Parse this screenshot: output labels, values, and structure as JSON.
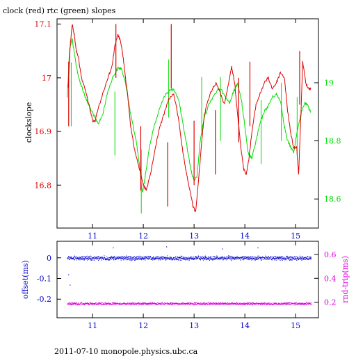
{
  "page": {
    "title": "clock (red) rtc (green) slopes",
    "footer": "2011-07-10  monopole.physics.ubc.ca"
  },
  "colors": {
    "clock": "#dd0000",
    "rtc": "#00dd00",
    "offset": "#0000cc",
    "rndtrip": "#dd00dd",
    "axis": "#000000"
  },
  "chart_data": [
    {
      "type": "line",
      "title": "clock (red) rtc (green) slopes",
      "ylabel": "clockslope",
      "xlim": [
        10.3,
        15.45
      ],
      "ylim": [
        16.72,
        17.11
      ],
      "y2lim": [
        18.5,
        19.22
      ],
      "x_ticks": [
        11,
        12,
        13,
        14,
        15
      ],
      "y_ticks": [
        16.8,
        16.9,
        17,
        17.1
      ],
      "y2_ticks": [
        18.6,
        18.8,
        19
      ],
      "y2_tick_labels": [
        "18.6",
        "18.8",
        "19"
      ],
      "series": [
        {
          "name": "clock",
          "axis": "left",
          "x": [
            10.52,
            10.56,
            10.6,
            10.64,
            10.68,
            10.72,
            10.78,
            10.85,
            10.93,
            11.0,
            11.05,
            11.1,
            11.2,
            11.3,
            11.38,
            11.44,
            11.5,
            11.55,
            11.6,
            11.65,
            11.7,
            11.75,
            11.82,
            11.9,
            12.0,
            12.06,
            12.14,
            12.22,
            12.3,
            12.4,
            12.5,
            12.6,
            12.7,
            12.78,
            12.85,
            12.92,
            12.98,
            13.03,
            13.08,
            13.14,
            13.2,
            13.28,
            13.36,
            13.44,
            13.52,
            13.6,
            13.68,
            13.74,
            13.8,
            13.86,
            13.92,
            13.98,
            14.03,
            14.08,
            14.14,
            14.22,
            14.3,
            14.38,
            14.46,
            14.54,
            14.62,
            14.7,
            14.78,
            14.84,
            14.9,
            14.96,
            15.02,
            15.06,
            15.1,
            15.14,
            15.2,
            15.26,
            15.3
          ],
          "values": [
            16.98,
            17.06,
            17.1,
            17.08,
            17.05,
            17.04,
            17.0,
            16.98,
            16.95,
            16.92,
            16.92,
            16.94,
            16.97,
            17.0,
            17.02,
            17.06,
            17.08,
            17.07,
            17.04,
            17.0,
            16.96,
            16.91,
            16.87,
            16.84,
            16.8,
            16.79,
            16.82,
            16.86,
            16.9,
            16.93,
            16.96,
            16.97,
            16.92,
            16.86,
            16.82,
            16.79,
            16.76,
            16.75,
            16.8,
            16.87,
            16.93,
            16.96,
            16.98,
            16.99,
            16.97,
            16.95,
            16.99,
            17.02,
            16.99,
            16.93,
            16.87,
            16.83,
            16.82,
            16.85,
            16.9,
            16.95,
            16.97,
            16.99,
            17.0,
            16.98,
            16.99,
            17.01,
            17.0,
            16.94,
            16.9,
            16.87,
            16.87,
            16.82,
            16.92,
            17.03,
            16.99,
            16.98,
            16.98
          ]
        },
        {
          "name": "rtc",
          "axis": "right",
          "x": [
            10.5,
            10.55,
            10.6,
            10.66,
            10.72,
            10.8,
            10.88,
            10.96,
            11.04,
            11.12,
            11.2,
            11.3,
            11.4,
            11.5,
            11.56,
            11.62,
            11.68,
            11.74,
            11.8,
            11.86,
            11.92,
            11.98,
            12.04,
            12.12,
            12.2,
            12.3,
            12.4,
            12.5,
            12.6,
            12.7,
            12.78,
            12.86,
            12.94,
            13.0,
            13.06,
            13.12,
            13.2,
            13.3,
            13.4,
            13.5,
            13.6,
            13.7,
            13.78,
            13.86,
            13.94,
            14.0,
            14.06,
            14.14,
            14.22,
            14.3,
            14.38,
            14.46,
            14.54,
            14.62,
            14.7,
            14.78,
            14.84,
            14.9,
            14.96,
            15.0,
            15.06,
            15.12,
            15.18,
            15.24,
            15.3
          ],
          "values": [
            18.95,
            19.12,
            19.15,
            19.08,
            19.02,
            18.98,
            18.94,
            18.91,
            18.88,
            18.86,
            18.89,
            18.97,
            19.02,
            19.05,
            19.05,
            19.02,
            18.97,
            18.9,
            18.85,
            18.8,
            18.72,
            18.62,
            18.68,
            18.78,
            18.84,
            18.9,
            18.95,
            18.97,
            18.98,
            18.94,
            18.86,
            18.78,
            18.7,
            18.66,
            18.68,
            18.8,
            18.88,
            18.93,
            18.96,
            18.98,
            18.96,
            18.93,
            18.97,
            19.0,
            18.93,
            18.85,
            18.76,
            18.74,
            18.8,
            18.86,
            18.9,
            18.92,
            18.95,
            18.96,
            18.94,
            18.85,
            18.8,
            18.78,
            18.76,
            18.8,
            18.86,
            18.9,
            18.93,
            18.92,
            18.9
          ]
        }
      ],
      "clock_spikes": [
        [
          10.53,
          16.91
        ],
        [
          11.46,
          17.1
        ],
        [
          11.95,
          16.79
        ],
        [
          12.48,
          16.76
        ],
        [
          12.55,
          16.98
        ],
        [
          13.0,
          16.8
        ],
        [
          13.42,
          16.82
        ],
        [
          13.88,
          16.88
        ],
        [
          14.1,
          16.91
        ],
        [
          15.08,
          17.05
        ]
      ],
      "rtc_spikes": [
        [
          10.58,
          18.85
        ],
        [
          11.44,
          18.75
        ],
        [
          11.96,
          18.55
        ],
        [
          12.5,
          19.08
        ],
        [
          13.15,
          19.02
        ],
        [
          13.52,
          18.8
        ],
        [
          14.32,
          18.72
        ],
        [
          14.72,
          19.0
        ],
        [
          15.03,
          18.95
        ]
      ]
    },
    {
      "type": "scatter",
      "ylabel": "offset(ms)",
      "y2label": "rnd-trip(ms)",
      "xlim": [
        10.3,
        15.45
      ],
      "ylim": [
        -0.29,
        0.08
      ],
      "y2lim": [
        0.07,
        0.71
      ],
      "x_ticks": [
        11,
        12,
        13,
        14,
        15
      ],
      "y_ticks": [
        0,
        -0.1,
        -0.2
      ],
      "y2_ticks": [
        0.2,
        0.4,
        0.6
      ],
      "y2_tick_labels": [
        "0.2",
        "0.4",
        "0.6"
      ],
      "offset_level": 0.0,
      "offset_spread": 0.012,
      "offset_outliers": [
        [
          10.55,
          -0.13
        ],
        [
          10.52,
          -0.08
        ],
        [
          11.4,
          0.05
        ],
        [
          12.45,
          0.055
        ],
        [
          13.55,
          0.045
        ],
        [
          14.25,
          0.05
        ]
      ],
      "rndtrip_level": 0.19,
      "rndtrip_spread": 0.012,
      "x_start": 10.5,
      "x_end": 15.3
    }
  ]
}
